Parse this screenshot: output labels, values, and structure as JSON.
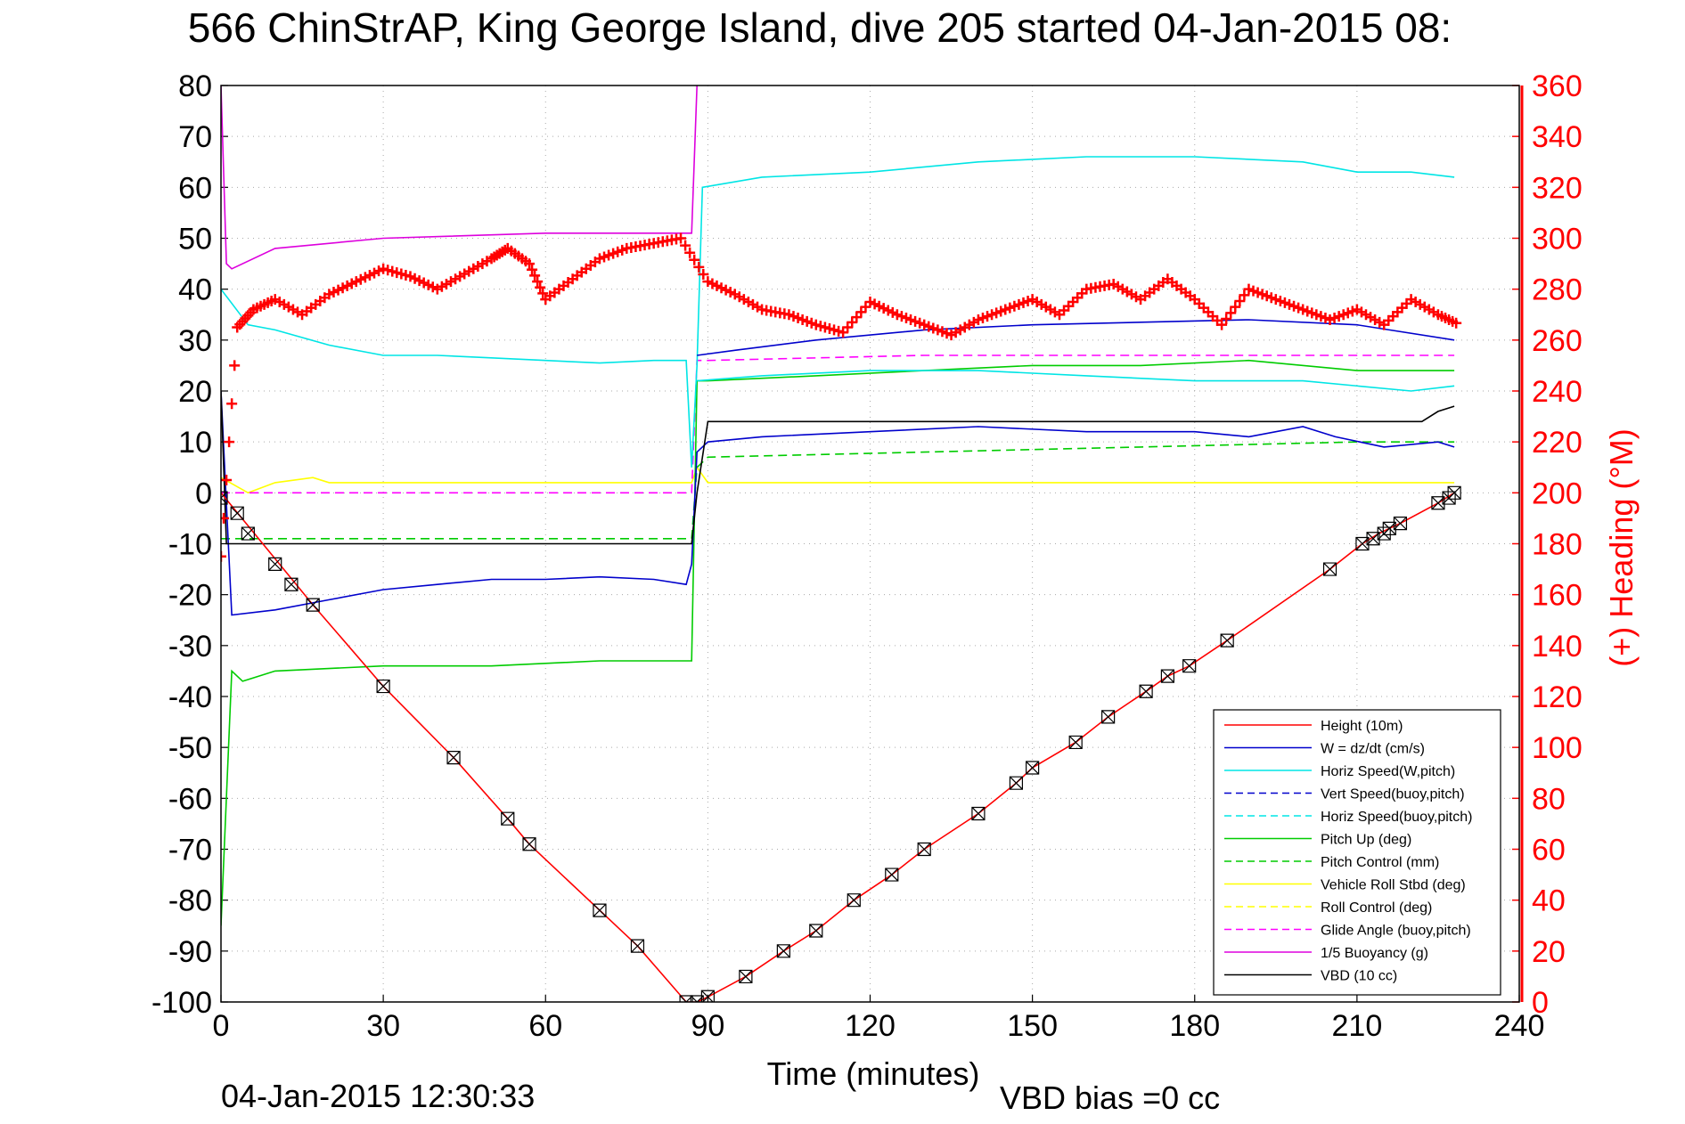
{
  "chart_data": {
    "type": "line",
    "title": "566 ChinStrAP, King George Island, dive 205 started 04-Jan-2015 08:",
    "xlabel": "Time (minutes)",
    "ylabel_right": "(+) Heading (°M)",
    "xlim": [
      0,
      240
    ],
    "ylim": [
      -100,
      80
    ],
    "ylim_right": [
      0,
      360
    ],
    "x_ticks": [
      0,
      30,
      60,
      90,
      120,
      150,
      180,
      210,
      240
    ],
    "y_ticks": [
      80,
      70,
      60,
      50,
      40,
      30,
      20,
      10,
      0,
      -10,
      -20,
      -30,
      -40,
      -50,
      -60,
      -70,
      -80,
      -90,
      -100
    ],
    "y_right_ticks": [
      360,
      340,
      320,
      300,
      280,
      260,
      240,
      220,
      200,
      180,
      160,
      140,
      120,
      100,
      80,
      60,
      40,
      20,
      0
    ],
    "grid": true,
    "legend_position": "bottom-right",
    "footer_left": "04-Jan-2015 12:30:33",
    "footer_right": "VBD bias =0 cc",
    "colors": {
      "height": "#ff0000",
      "w": "#0000cc",
      "horiz_speed": "#00e5e5",
      "pitch": "#00cc00",
      "roll": "#ffff00",
      "glide": "#ff00ff",
      "buoyancy": "#dd00dd",
      "vbd": "#000000",
      "heading": "#ff0000"
    },
    "legend": [
      {
        "label": "Height (10m)",
        "color": "#ff0000",
        "dash": "solid"
      },
      {
        "label": "W = dz/dt (cm/s)",
        "color": "#0000cc",
        "dash": "solid"
      },
      {
        "label": "Horiz Speed(W,pitch)",
        "color": "#00e5e5",
        "dash": "solid"
      },
      {
        "label": "Vert Speed(buoy,pitch)",
        "color": "#0000cc",
        "dash": "dashed"
      },
      {
        "label": "Horiz Speed(buoy,pitch)",
        "color": "#00e5e5",
        "dash": "dashed"
      },
      {
        "label": "Pitch Up (deg)",
        "color": "#00cc00",
        "dash": "solid"
      },
      {
        "label": "Pitch Control (mm)",
        "color": "#00cc00",
        "dash": "dashed"
      },
      {
        "label": "Vehicle Roll Stbd (deg)",
        "color": "#ffff00",
        "dash": "solid"
      },
      {
        "label": "Roll Control (deg)",
        "color": "#ffff00",
        "dash": "dashed"
      },
      {
        "label": "Glide Angle (buoy,pitch)",
        "color": "#ff00ff",
        "dash": "dashed"
      },
      {
        "label": "1/5 Buoyancy (g)",
        "color": "#dd00dd",
        "dash": "solid"
      },
      {
        "label": "VBD (10 cc)",
        "color": "#000000",
        "dash": "solid"
      }
    ],
    "series": [
      {
        "name": "Height (10m)",
        "key": "height",
        "x": [
          0,
          17,
          30,
          43,
          53,
          57,
          70,
          77,
          86,
          88,
          90,
          97,
          104,
          110,
          117,
          124,
          130,
          140,
          147,
          150,
          158,
          164,
          171,
          175,
          179,
          186,
          205,
          211,
          214,
          216,
          218,
          225,
          228
        ],
        "y": [
          0,
          -22,
          -38,
          -52,
          -64,
          -69,
          -82,
          -89,
          -100,
          -100,
          -99,
          -95,
          -90,
          -86,
          -80,
          -75,
          -70,
          -63,
          -57,
          -54,
          -49,
          -44,
          -39,
          -36,
          -34,
          -29,
          -15,
          -10,
          -8,
          -7,
          -6,
          -2,
          0
        ]
      },
      {
        "name": "W = dz/dt (cm/s)",
        "key": "w",
        "x": [
          0,
          2,
          10,
          20,
          30,
          40,
          50,
          60,
          70,
          80,
          86,
          87,
          88,
          90,
          100,
          120,
          140,
          160,
          180,
          190,
          200,
          206,
          215,
          225,
          228
        ],
        "y": [
          20,
          -24,
          -23,
          -21,
          -19,
          -18,
          -17,
          -17,
          -16.5,
          -17,
          -18,
          -14,
          8,
          10,
          11,
          12,
          13,
          12,
          12,
          11,
          13,
          11,
          9,
          10,
          9
        ]
      },
      {
        "name": "W upper trace",
        "key": "w",
        "x": [
          88,
          95,
          110,
          130,
          150,
          170,
          190,
          210,
          228
        ],
        "y": [
          27,
          28,
          30,
          32,
          33,
          33.5,
          34,
          33,
          30
        ]
      },
      {
        "name": "Horiz Speed(W,pitch)",
        "key": "horiz_speed",
        "x": [
          0,
          5,
          10,
          20,
          30,
          40,
          50,
          60,
          70,
          80,
          86,
          87,
          88,
          89,
          100,
          120,
          140,
          160,
          180,
          200,
          210,
          220,
          228
        ],
        "y": [
          40,
          33,
          32,
          29,
          27,
          27,
          26.5,
          26,
          25.5,
          26,
          26,
          5,
          25,
          60,
          62,
          63,
          65,
          66,
          66,
          65,
          63,
          63,
          62
        ]
      },
      {
        "name": "Horiz Speed lower trace",
        "key": "horiz_speed",
        "x": [
          88,
          100,
          120,
          140,
          160,
          180,
          200,
          220,
          228
        ],
        "y": [
          22,
          23,
          24,
          24,
          23,
          22,
          22,
          20,
          21
        ]
      },
      {
        "name": "Pitch Up (deg)",
        "key": "pitch",
        "x": [
          0,
          2,
          4,
          10,
          30,
          50,
          70,
          86,
          87,
          88,
          90,
          110,
          130,
          150,
          170,
          190,
          210,
          228
        ],
        "y": [
          -85,
          -35,
          -37,
          -35,
          -34,
          -34,
          -33,
          -33,
          -33,
          22,
          22,
          23,
          24,
          25,
          25,
          26,
          24,
          24
        ]
      },
      {
        "name": "Pitch Control (mm)",
        "key": "pitch",
        "dash": "dashed",
        "x": [
          0,
          87,
          88,
          90,
          130,
          170,
          210,
          228
        ],
        "y": [
          -9,
          -9,
          5,
          7,
          8,
          9,
          10,
          10
        ]
      },
      {
        "name": "Vehicle Roll Stbd (deg)",
        "key": "roll",
        "x": [
          0,
          5,
          10,
          17,
          20,
          87,
          88,
          90,
          228
        ],
        "y": [
          3,
          0,
          2,
          3,
          2,
          2,
          5,
          2,
          2
        ]
      },
      {
        "name": "Glide Angle (buoy,pitch)",
        "key": "glide",
        "dash": "dashed",
        "x": [
          0,
          87,
          88,
          90,
          130,
          170,
          210,
          228
        ],
        "y": [
          0,
          0,
          26,
          26,
          27,
          27,
          27,
          27
        ]
      },
      {
        "name": "1/5 Buoyancy (g)",
        "key": "buoyancy",
        "x": [
          0,
          1,
          2,
          10,
          30,
          60,
          86,
          87,
          88
        ],
        "y": [
          80,
          45,
          44,
          48,
          50,
          51,
          51,
          51,
          80
        ]
      },
      {
        "name": "VBD (10 cc)",
        "key": "vbd",
        "x": [
          0,
          1,
          2,
          87,
          88,
          90,
          120,
          160,
          190,
          210,
          222,
          225,
          228
        ],
        "y": [
          20,
          -10,
          -10,
          -10,
          0,
          14,
          14,
          14,
          14,
          14,
          14,
          16,
          17
        ]
      },
      {
        "name": "(+) Heading (°M)",
        "key": "heading",
        "axis": "right",
        "x": [
          0,
          3,
          6,
          10,
          15,
          20,
          25,
          30,
          35,
          40,
          45,
          50,
          53,
          57,
          60,
          65,
          70,
          75,
          80,
          85,
          90,
          95,
          100,
          105,
          110,
          115,
          120,
          125,
          130,
          135,
          140,
          145,
          150,
          155,
          160,
          165,
          170,
          175,
          180,
          185,
          190,
          195,
          200,
          205,
          210,
          215,
          220,
          225,
          229
        ],
        "y": [
          175,
          265,
          272,
          276,
          270,
          278,
          283,
          288,
          285,
          280,
          286,
          292,
          296,
          290,
          276,
          284,
          292,
          296,
          298,
          300,
          283,
          278,
          272,
          270,
          266,
          263,
          275,
          270,
          266,
          262,
          268,
          272,
          276,
          270,
          280,
          282,
          276,
          284,
          276,
          266,
          280,
          276,
          272,
          268,
          272,
          266,
          276,
          270,
          266
        ]
      }
    ],
    "height_markers": {
      "x": [
        0,
        3,
        5,
        10,
        13,
        17,
        30,
        43,
        53,
        57,
        70,
        77,
        86,
        88,
        90,
        97,
        104,
        110,
        117,
        124,
        130,
        140,
        147,
        150,
        158,
        164,
        171,
        175,
        179,
        186,
        205,
        211,
        213,
        215,
        216,
        218,
        225,
        227,
        228
      ],
      "y": [
        -1,
        -4,
        -8,
        -14,
        -18,
        -22,
        -38,
        -52,
        -64,
        -69,
        -82,
        -89,
        -100,
        -100,
        -99,
        -95,
        -90,
        -86,
        -80,
        -75,
        -70,
        -63,
        -57,
        -54,
        -49,
        -44,
        -39,
        -36,
        -34,
        -29,
        -15,
        -10,
        -9,
        -8,
        -7,
        -6,
        -2,
        -1,
        0
      ]
    }
  }
}
